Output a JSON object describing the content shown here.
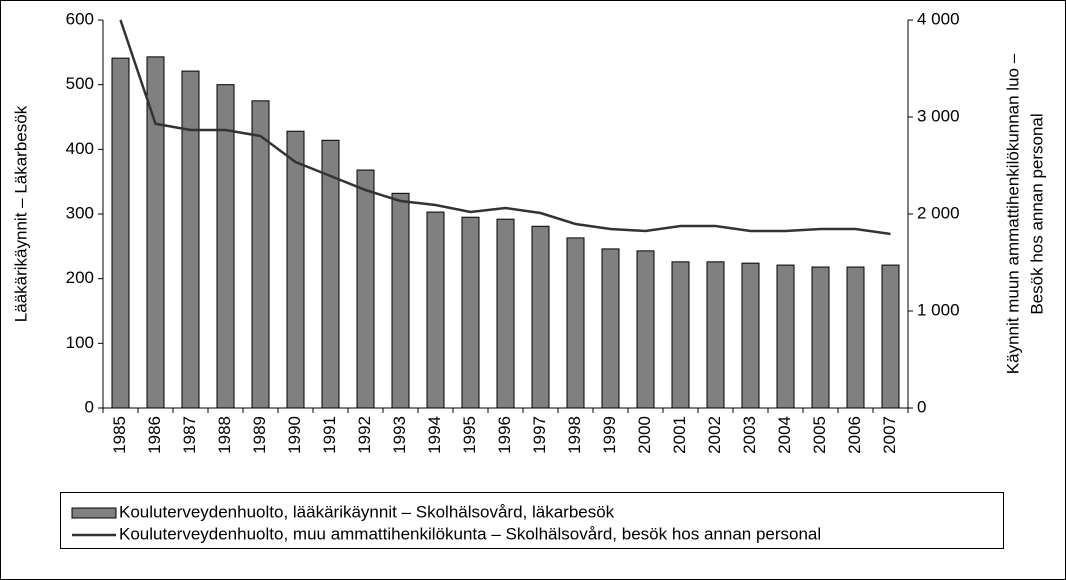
{
  "chart_data": {
    "type": "bar_line",
    "ylabel": "Lääkärikäynnit – Läkarbesök",
    "y2label": [
      "Käynnit muun ammattihenkilökunnan luo –",
      "Besök hos annan personal"
    ],
    "categories": [
      "1985",
      "1986",
      "1987",
      "1988",
      "1989",
      "1990",
      "1991",
      "1992",
      "1993",
      "1994",
      "1995",
      "1996",
      "1997",
      "1998",
      "1999",
      "2000",
      "2001",
      "2002",
      "2003",
      "2004",
      "2005",
      "2006",
      "2007"
    ],
    "series": [
      {
        "name": "Kouluterveydenhuolto, lääkärikäynnit – Skolhälsovård, läkarbesök",
        "type": "bar",
        "color": "#808080",
        "values": [
          541,
          543,
          521,
          500,
          475,
          428,
          414,
          368,
          332,
          303,
          295,
          292,
          281,
          263,
          246,
          243,
          226,
          226,
          224,
          221,
          218,
          218,
          221
        ]
      },
      {
        "name": "Kouluterveydenhuolto, muu ammattihenkilökunta – Skolhälsovård, besök hos annan personal",
        "type": "line",
        "color": "#333333",
        "axis": "y2",
        "values": [
          4000,
          2930,
          2866,
          2866,
          2804,
          2536,
          2392,
          2247,
          2134,
          2093,
          2021,
          2062,
          2010,
          1897,
          1845,
          1825,
          1876,
          1876,
          1825,
          1825,
          1845,
          1845,
          1794
        ]
      }
    ],
    "ylim": [
      0,
      600
    ],
    "yticks": [
      0,
      100,
      200,
      300,
      400,
      500,
      600
    ],
    "y2lim": [
      0,
      4000
    ],
    "y2ticks": [
      0,
      {
        "value": 1000,
        "label": "1 000"
      },
      {
        "value": 2000,
        "label": "2 000"
      },
      {
        "value": 3000,
        "label": "3 000"
      },
      {
        "value": 4000,
        "label": "4 000"
      }
    ],
    "grid": false,
    "legend": "bottom"
  }
}
